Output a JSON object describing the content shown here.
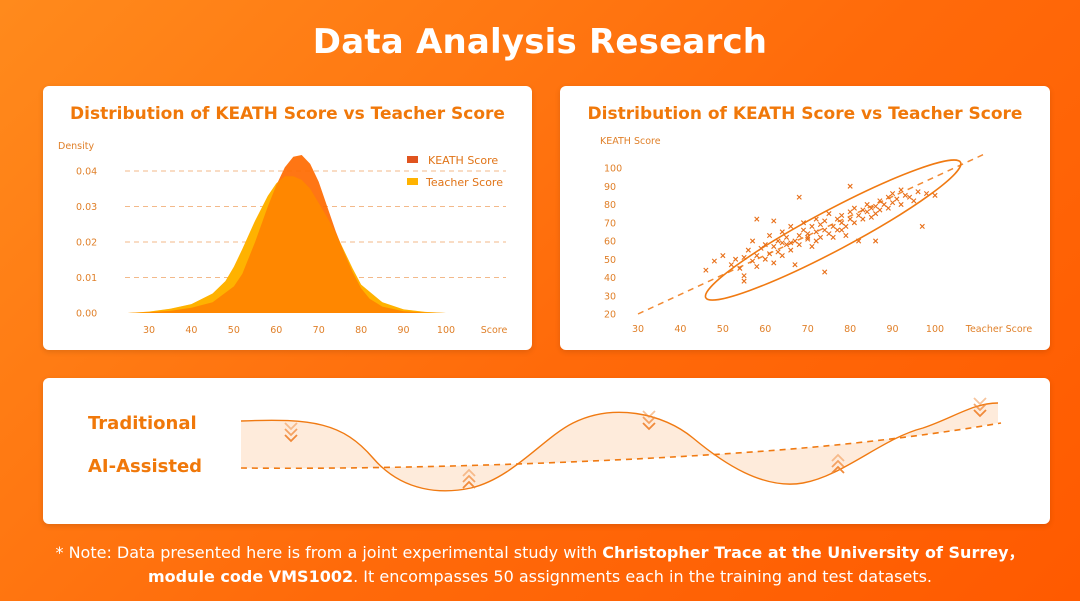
{
  "page": {
    "title": "Data Analysis Research",
    "note": {
      "prefix": "* Note: Data presented here is from a joint experimental study with ",
      "bold1": "Christopher Trace at the University of Surrey，",
      "bold2": "module code VMS1002",
      "suffix": ". It encompasses 50 assignments each in the training and test datasets."
    }
  },
  "colors": {
    "accent": "#f0780a",
    "keath": "#ff6a00",
    "teacher": "#ffb300",
    "background": "#ff7a12"
  },
  "chart_data": [
    {
      "type": "area",
      "title": "Distribution of KEATH Score vs Teacher Score",
      "xlabel": "Score",
      "ylabel": "Density",
      "xlim": [
        25,
        108
      ],
      "ylim": [
        0,
        0.045
      ],
      "xticks": [
        30,
        40,
        50,
        60,
        70,
        80,
        90,
        100
      ],
      "yticks": [
        "0.00",
        "0.01",
        "0.02",
        "0.03",
        "0.04"
      ],
      "grid": "horizontal-dashed",
      "legend_position": "top-right",
      "series": [
        {
          "name": "KEATH Score",
          "color": "#ff6a00",
          "x": [
            25,
            30,
            35,
            40,
            45,
            50,
            52,
            55,
            58,
            60,
            62,
            64,
            66,
            68,
            70,
            72,
            74,
            76,
            78,
            80,
            82,
            85,
            90,
            95,
            100,
            108
          ],
          "y": [
            0,
            0.0002,
            0.0006,
            0.0015,
            0.003,
            0.0075,
            0.011,
            0.02,
            0.03,
            0.036,
            0.041,
            0.044,
            0.0445,
            0.042,
            0.037,
            0.03,
            0.023,
            0.017,
            0.0115,
            0.007,
            0.004,
            0.0018,
            0.0005,
            0.0001,
            0,
            0
          ]
        },
        {
          "name": "Teacher Score",
          "color": "#ffb300",
          "x": [
            25,
            30,
            35,
            40,
            45,
            48,
            50,
            52,
            55,
            58,
            60,
            62,
            64,
            66,
            68,
            70,
            72,
            74,
            76,
            78,
            80,
            85,
            90,
            95,
            100,
            108
          ],
          "y": [
            0,
            0.0004,
            0.0012,
            0.0025,
            0.0055,
            0.009,
            0.013,
            0.018,
            0.026,
            0.033,
            0.0365,
            0.0385,
            0.0385,
            0.0375,
            0.035,
            0.031,
            0.027,
            0.0225,
            0.0175,
            0.0125,
            0.008,
            0.003,
            0.001,
            0.0003,
            0,
            0
          ]
        }
      ]
    },
    {
      "type": "scatter",
      "title": "Distribution of KEATH Score vs Teacher Score",
      "xlabel": "Teacher Score",
      "ylabel": "KEATH Score",
      "xlim": [
        30,
        112
      ],
      "ylim": [
        20,
        110
      ],
      "xticks": [
        30,
        40,
        50,
        60,
        70,
        80,
        90,
        100
      ],
      "yticks": [
        20,
        30,
        40,
        50,
        60,
        70,
        80,
        90,
        100
      ],
      "trend_line": {
        "from": [
          30,
          20
        ],
        "to": [
          112,
          108
        ]
      },
      "ellipse": {
        "center": [
          76,
          66
        ],
        "rx_units": 34,
        "ry_units": 11,
        "angle_deg": -28
      },
      "points": [
        [
          46,
          44
        ],
        [
          48,
          49
        ],
        [
          50,
          52
        ],
        [
          52,
          47
        ],
        [
          53,
          50
        ],
        [
          54,
          45
        ],
        [
          55,
          51
        ],
        [
          55,
          38
        ],
        [
          56,
          55
        ],
        [
          57,
          49
        ],
        [
          57,
          60
        ],
        [
          58,
          46
        ],
        [
          58,
          52
        ],
        [
          59,
          56
        ],
        [
          60,
          58
        ],
        [
          60,
          50
        ],
        [
          61,
          53
        ],
        [
          61,
          63
        ],
        [
          62,
          48
        ],
        [
          62,
          57
        ],
        [
          63,
          60
        ],
        [
          63,
          54
        ],
        [
          64,
          65
        ],
        [
          64,
          52
        ],
        [
          65,
          58
        ],
        [
          65,
          62
        ],
        [
          66,
          55
        ],
        [
          66,
          68
        ],
        [
          67,
          60
        ],
        [
          67,
          47
        ],
        [
          68,
          63
        ],
        [
          68,
          58
        ],
        [
          69,
          66
        ],
        [
          69,
          70
        ],
        [
          70,
          61
        ],
        [
          70,
          64
        ],
        [
          71,
          68
        ],
        [
          71,
          57
        ],
        [
          72,
          65
        ],
        [
          72,
          72
        ],
        [
          73,
          62
        ],
        [
          73,
          69
        ],
        [
          74,
          66
        ],
        [
          74,
          71
        ],
        [
          75,
          64
        ],
        [
          75,
          75
        ],
        [
          76,
          68
        ],
        [
          76,
          62
        ],
        [
          77,
          72
        ],
        [
          77,
          66
        ],
        [
          78,
          70
        ],
        [
          78,
          74
        ],
        [
          79,
          68
        ],
        [
          79,
          63
        ],
        [
          80,
          72
        ],
        [
          80,
          76
        ],
        [
          81,
          70
        ],
        [
          81,
          78
        ],
        [
          82,
          74
        ],
        [
          82,
          60
        ],
        [
          83,
          77
        ],
        [
          83,
          72
        ],
        [
          84,
          76
        ],
        [
          84,
          80
        ],
        [
          85,
          73
        ],
        [
          85,
          78
        ],
        [
          86,
          79
        ],
        [
          86,
          75
        ],
        [
          87,
          82
        ],
        [
          87,
          77
        ],
        [
          88,
          80
        ],
        [
          89,
          84
        ],
        [
          89,
          78
        ],
        [
          90,
          86
        ],
        [
          90,
          81
        ],
        [
          91,
          83
        ],
        [
          92,
          88
        ],
        [
          92,
          80
        ],
        [
          93,
          85
        ],
        [
          94,
          84
        ],
        [
          95,
          82
        ],
        [
          96,
          87
        ],
        [
          97,
          68
        ],
        [
          98,
          86
        ],
        [
          100,
          85
        ],
        [
          68,
          84
        ],
        [
          62,
          71
        ],
        [
          58,
          72
        ],
        [
          74,
          43
        ],
        [
          86,
          60
        ],
        [
          80,
          90
        ],
        [
          70,
          62
        ],
        [
          66,
          59
        ],
        [
          78,
          66
        ],
        [
          55,
          41
        ],
        [
          64,
          59
        ],
        [
          72,
          60
        ]
      ]
    },
    {
      "type": "line",
      "series": [
        {
          "name": "Traditional",
          "style": "solid-wave"
        },
        {
          "name": "AI-Assisted",
          "style": "dashed-trend"
        }
      ]
    }
  ]
}
